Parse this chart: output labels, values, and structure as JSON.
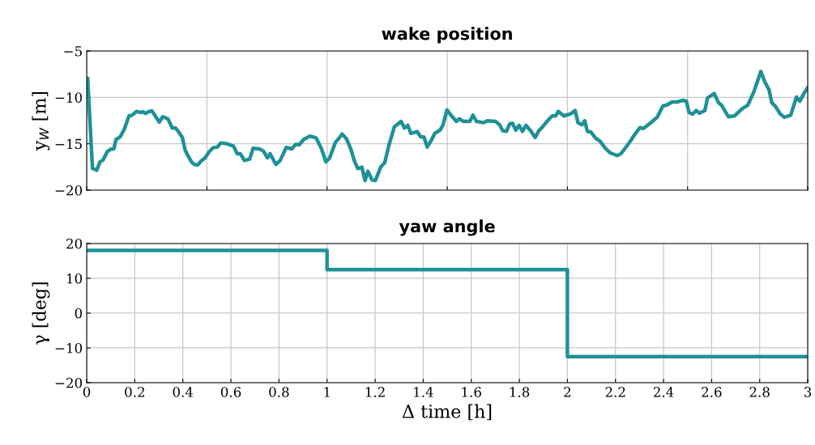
{
  "chart_data": [
    {
      "type": "line",
      "title": "wake position",
      "ylabel": "y$_{W}$ [m]",
      "xlim": [
        0,
        3
      ],
      "ylim": [
        -20,
        -5
      ],
      "xticks": [
        0,
        0.5,
        1,
        1.5,
        2,
        2.5,
        3
      ],
      "yticks": [
        {
          "value": -20,
          "label": "−20"
        },
        {
          "value": -15,
          "label": "−15"
        },
        {
          "value": -10,
          "label": "−10"
        },
        {
          "value": -5,
          "label": "−5"
        }
      ],
      "grid": true,
      "tick_labels": "y",
      "series": [
        {
          "color": "#1f9196",
          "x": [
            0.004,
            0.024,
            0.042,
            0.055,
            0.068,
            0.085,
            0.1,
            0.113,
            0.122,
            0.139,
            0.156,
            0.176,
            0.19,
            0.207,
            0.223,
            0.235,
            0.246,
            0.257,
            0.271,
            0.285,
            0.302,
            0.316,
            0.338,
            0.356,
            0.37,
            0.383,
            0.398,
            0.409,
            0.42,
            0.437,
            0.448,
            0.462,
            0.476,
            0.493,
            0.508,
            0.525,
            0.544,
            0.558,
            0.583,
            0.611,
            0.626,
            0.639,
            0.656,
            0.678,
            0.692,
            0.718,
            0.735,
            0.752,
            0.763,
            0.787,
            0.805,
            0.83,
            0.853,
            0.87,
            0.884,
            0.903,
            0.929,
            0.954,
            0.976,
            0.995,
            1.01,
            1.035,
            1.046,
            1.063,
            1.081,
            1.1,
            1.113,
            1.128,
            1.145,
            1.158,
            1.17,
            1.187,
            1.201,
            1.223,
            1.24,
            1.257,
            1.28,
            1.308,
            1.322,
            1.336,
            1.349,
            1.375,
            1.39,
            1.403,
            1.417,
            1.431,
            1.448,
            1.47,
            1.482,
            1.499,
            1.521,
            1.538,
            1.551,
            1.566,
            1.594,
            1.607,
            1.622,
            1.65,
            1.667,
            1.701,
            1.718,
            1.731,
            1.746,
            1.76,
            1.772,
            1.785,
            1.799,
            1.813,
            1.828,
            1.847,
            1.866,
            1.881,
            1.897,
            1.92,
            1.937,
            1.951,
            1.962,
            1.985,
            2.012,
            2.032,
            2.044,
            2.061,
            2.072,
            2.083,
            2.098,
            2.117,
            2.137,
            2.156,
            2.178,
            2.207,
            2.223,
            2.246,
            2.263,
            2.279,
            2.302,
            2.315,
            2.336,
            2.353,
            2.375,
            2.397,
            2.412,
            2.436,
            2.459,
            2.481,
            2.495,
            2.506,
            2.521,
            2.536,
            2.549,
            2.572,
            2.583,
            2.611,
            2.628,
            2.641,
            2.67,
            2.695,
            2.727,
            2.751,
            2.776,
            2.805,
            2.821,
            2.839,
            2.85,
            2.866,
            2.886,
            2.903,
            2.929,
            2.953,
            2.967,
            2.982,
            3.0
          ],
          "values": [
            -7.94,
            -17.67,
            -17.85,
            -16.95,
            -16.74,
            -15.87,
            -15.58,
            -15.55,
            -14.53,
            -14.27,
            -13.46,
            -12.0,
            -11.91,
            -11.51,
            -11.63,
            -11.56,
            -11.74,
            -11.54,
            -11.45,
            -12.0,
            -12.67,
            -12.09,
            -12.32,
            -13.31,
            -13.31,
            -13.74,
            -14.33,
            -15.64,
            -16.22,
            -17.0,
            -17.23,
            -17.29,
            -16.86,
            -16.51,
            -15.93,
            -15.43,
            -15.35,
            -14.91,
            -15.0,
            -15.26,
            -16.07,
            -16.07,
            -16.8,
            -16.66,
            -15.49,
            -15.55,
            -15.78,
            -16.51,
            -16.07,
            -17.23,
            -16.8,
            -15.4,
            -15.55,
            -15.06,
            -15.12,
            -14.53,
            -14.18,
            -14.36,
            -15.49,
            -16.95,
            -16.57,
            -14.83,
            -14.53,
            -13.95,
            -14.48,
            -15.64,
            -16.8,
            -17.67,
            -17.52,
            -18.97,
            -17.96,
            -18.89,
            -18.97,
            -17.52,
            -17.03,
            -15.2,
            -13.17,
            -12.59,
            -13.31,
            -13.02,
            -13.89,
            -13.69,
            -14.27,
            -14.27,
            -15.35,
            -14.76,
            -13.89,
            -13.54,
            -13.02,
            -11.36,
            -12.09,
            -12.59,
            -12.3,
            -12.59,
            -12.59,
            -11.92,
            -12.59,
            -12.73,
            -12.52,
            -12.59,
            -12.96,
            -13.6,
            -13.66,
            -12.87,
            -12.79,
            -13.54,
            -13.02,
            -13.66,
            -13.02,
            -13.6,
            -14.33,
            -13.6,
            -13.17,
            -12.44,
            -12.0,
            -12.0,
            -11.51,
            -12.0,
            -11.8,
            -11.42,
            -12.73,
            -12.96,
            -12.52,
            -13.66,
            -13.74,
            -14.39,
            -14.76,
            -15.43,
            -15.99,
            -16.27,
            -16.07,
            -15.29,
            -14.68,
            -14.04,
            -13.26,
            -13.37,
            -12.96,
            -12.61,
            -12.09,
            -10.93,
            -10.84,
            -10.49,
            -10.49,
            -10.32,
            -10.41,
            -11.63,
            -11.8,
            -11.42,
            -11.71,
            -11.42,
            -10.06,
            -9.59,
            -10.55,
            -10.84,
            -12.09,
            -12.0,
            -11.22,
            -10.84,
            -9.39,
            -7.21,
            -8.31,
            -9.19,
            -10.55,
            -10.99,
            -11.8,
            -12.15,
            -11.92,
            -9.97,
            -10.41,
            -9.68,
            -8.95
          ]
        }
      ]
    },
    {
      "type": "step",
      "title": "yaw angle",
      "xlabel": "Δ time [h]",
      "ylabel": "γ [deg]",
      "xlim": [
        0,
        3
      ],
      "ylim": [
        -20,
        20
      ],
      "xticks": [
        0,
        0.2,
        0.4,
        0.6,
        0.8,
        1,
        1.2,
        1.4,
        1.6,
        1.8,
        2,
        2.2,
        2.4,
        2.6,
        2.8,
        3
      ],
      "yticks": [
        {
          "value": -20,
          "label": "−20"
        },
        {
          "value": -10,
          "label": "−10"
        },
        0,
        10,
        20
      ],
      "grid": true,
      "series": [
        {
          "color": "#1f9196",
          "x": [
            0,
            1,
            2,
            3
          ],
          "values": [
            18,
            12.5,
            -12.5,
            -12.5
          ]
        }
      ]
    }
  ]
}
